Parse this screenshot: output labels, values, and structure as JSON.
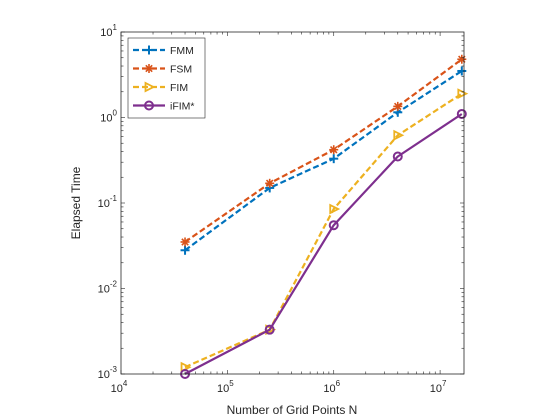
{
  "chart_data": {
    "type": "line",
    "xscale": "log",
    "yscale": "log",
    "xlabel": "Number of Grid Points N",
    "ylabel": "Elapsed Time",
    "xlim": [
      10000,
      16777216
    ],
    "ylim": [
      0.001,
      10
    ],
    "grid": false,
    "legend_position": "top-left",
    "x": [
      40000,
      250000,
      1000000,
      4000000,
      16000000
    ],
    "x_ticks": [
      {
        "value": 10000,
        "base": "10",
        "exp": "4"
      },
      {
        "value": 100000,
        "base": "10",
        "exp": "5"
      },
      {
        "value": 1000000,
        "base": "10",
        "exp": "6"
      },
      {
        "value": 10000000,
        "base": "10",
        "exp": "7"
      }
    ],
    "y_ticks": [
      {
        "value": 0.001,
        "base": "10",
        "exp": "-3"
      },
      {
        "value": 0.01,
        "base": "10",
        "exp": "-2"
      },
      {
        "value": 0.1,
        "base": "10",
        "exp": "-1"
      },
      {
        "value": 1,
        "base": "10",
        "exp": "0"
      },
      {
        "value": 10,
        "base": "10",
        "exp": "1"
      }
    ],
    "series": [
      {
        "name": "FMM",
        "color": "#0072BD",
        "dash": "dashed",
        "marker": "plus",
        "values": [
          0.028,
          0.15,
          0.33,
          1.15,
          3.5
        ]
      },
      {
        "name": "FSM",
        "color": "#D95319",
        "dash": "dashed",
        "marker": "star",
        "values": [
          0.035,
          0.17,
          0.42,
          1.35,
          4.8
        ]
      },
      {
        "name": "FIM",
        "color": "#EDB120",
        "dash": "dashed",
        "marker": "triangle-right",
        "values": [
          0.0012,
          0.0033,
          0.085,
          0.62,
          1.9
        ]
      },
      {
        "name": "iFIM*",
        "color": "#7E2F8E",
        "dash": "solid",
        "marker": "circle",
        "values": [
          0.001,
          0.0033,
          0.055,
          0.35,
          1.1
        ]
      }
    ]
  }
}
